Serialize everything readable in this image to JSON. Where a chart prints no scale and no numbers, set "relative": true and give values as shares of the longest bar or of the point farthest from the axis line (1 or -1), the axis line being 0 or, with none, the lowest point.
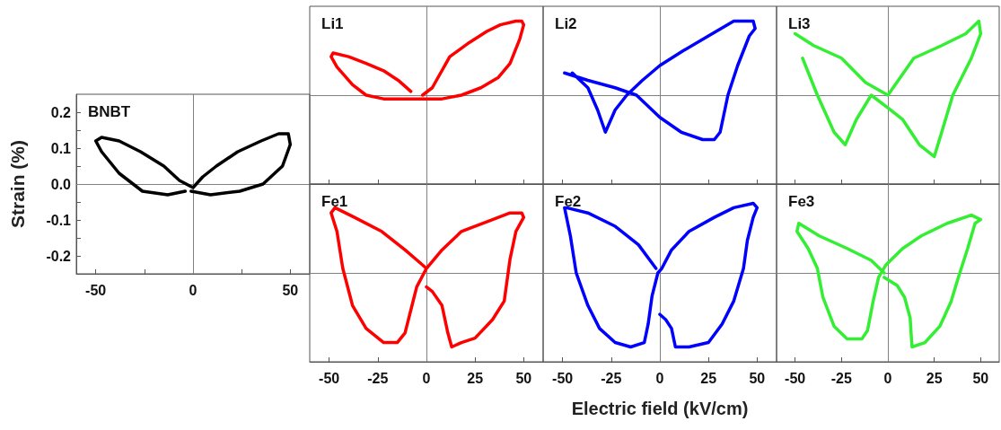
{
  "chart_data": [
    {
      "type": "line",
      "title": "BNBT",
      "ylabel": "Strain (%)",
      "x": [
        -1,
        9,
        24,
        36,
        46,
        50,
        49,
        44,
        35,
        23,
        12,
        5,
        0,
        -7,
        -15,
        -27,
        -38,
        -47,
        -50,
        -47,
        -38,
        -26,
        -13,
        -4
      ],
      "series": [
        {
          "color": "#000000",
          "values": [
            -0.02,
            -0.03,
            -0.02,
            0,
            0.05,
            0.11,
            0.14,
            0.14,
            0.12,
            0.09,
            0.05,
            0.02,
            -0.01,
            0.01,
            0.05,
            0.09,
            0.12,
            0.13,
            0.12,
            0.09,
            0.03,
            -0.02,
            -0.03,
            -0.02
          ]
        }
      ],
      "xlim": [
        -60,
        60
      ],
      "ylim": [
        -0.25,
        0.25
      ],
      "xticks": [
        -50,
        {
          "value": -25,
          "label": null
        },
        0,
        {
          "value": 25,
          "label": null
        },
        50
      ],
      "yticks": [
        -0.2,
        {
          "value": -0.15,
          "label": null
        },
        -0.1,
        {
          "value": -0.05,
          "label": null
        },
        {
          "value": 0,
          "label": "0.0"
        },
        {
          "value": 0.05,
          "label": null
        },
        0.1,
        {
          "value": 0.15,
          "label": null
        },
        0.2
      ],
      "ref_lines": [
        {
          "axis": "x",
          "value": 0,
          "color": "#808080"
        },
        {
          "axis": "y",
          "value": 0,
          "color": "#808080"
        }
      ]
    },
    {
      "type": "line",
      "title": "Li1",
      "relative": true,
      "x": [
        -2,
        3,
        12,
        22,
        31,
        38,
        46,
        49,
        50,
        48,
        43,
        37,
        28,
        18,
        8,
        0,
        -11,
        -22,
        -31,
        -38,
        -46,
        -49,
        -48,
        -40,
        -31,
        -22,
        -14,
        -8
      ],
      "series": [
        {
          "color": "#ff0000",
          "values": [
            0,
            0.1,
            0.52,
            0.71,
            0.86,
            0.95,
            1,
            1,
            0.95,
            0.76,
            0.43,
            0.24,
            0.1,
            0,
            -0.05,
            -0.05,
            -0.05,
            -0.05,
            0,
            0.14,
            0.38,
            0.52,
            0.57,
            0.52,
            0.43,
            0.33,
            0.19,
            0.05
          ]
        }
      ],
      "xlim": [
        -60,
        60
      ],
      "tick_labels": false,
      "xticks": [
        -50,
        -25,
        0,
        25,
        50
      ],
      "ref_lines": [
        {
          "axis": "x",
          "value": 0,
          "color": "#808080"
        }
      ]
    },
    {
      "type": "line",
      "title": "Li2",
      "relative": true,
      "x": [
        -49,
        -37,
        -23,
        -12,
        0,
        11,
        22,
        28,
        31,
        35,
        40,
        46,
        49,
        48,
        38,
        25,
        12,
        0,
        -9,
        -17,
        -23,
        -28,
        -32,
        -37,
        -45
      ],
      "series": [
        {
          "color": "#0000ff",
          "values": [
            0.3,
            0.2,
            0.1,
            0,
            -0.3,
            -0.5,
            -0.6,
            -0.6,
            -0.5,
            0,
            0.4,
            0.8,
            0.9,
            1,
            1,
            0.8,
            0.6,
            0.4,
            0.2,
            0,
            -0.2,
            -0.5,
            -0.2,
            0.1,
            0.3
          ]
        }
      ],
      "xlim": [
        -60,
        60
      ],
      "tick_labels": false,
      "xticks": [
        -50,
        -25,
        0,
        25,
        50
      ],
      "ref_lines": [
        {
          "axis": "x",
          "value": 0,
          "color": "#808080"
        }
      ]
    },
    {
      "type": "line",
      "title": "Li3",
      "relative": true,
      "x": [
        -50,
        -40,
        -25,
        -12,
        0,
        14,
        29,
        42,
        49,
        50,
        45,
        35,
        29,
        25,
        17,
        8,
        0,
        -9,
        -17,
        -23,
        -29,
        -38,
        -46
      ],
      "series": [
        {
          "color": "#33ee33",
          "values": [
            0.83,
            0.67,
            0.5,
            0.17,
            0,
            0.5,
            0.67,
            0.83,
            1,
            0.83,
            0.5,
            0,
            -0.5,
            -0.83,
            -0.67,
            -0.33,
            -0.17,
            0,
            -0.33,
            -0.67,
            -0.5,
            0,
            0.5
          ]
        }
      ],
      "xlim": [
        -60,
        60
      ],
      "tick_labels": false,
      "xticks": [
        -50,
        -25,
        0,
        25,
        50
      ],
      "ref_lines": [
        {
          "axis": "x",
          "value": 0,
          "color": "#808080"
        }
      ]
    },
    {
      "type": "line",
      "title": "Fe1",
      "relative": true,
      "x": [
        0,
        3,
        8,
        11,
        13,
        18,
        25,
        34,
        40,
        43,
        46,
        50,
        49,
        43,
        31,
        18,
        8,
        0,
        -5,
        -8,
        -11,
        -15,
        -22,
        -31,
        -38,
        -43,
        -46,
        -49,
        -47,
        -37,
        -23,
        -11,
        -3,
        0
      ],
      "series": [
        {
          "color": "#ff0000",
          "values": [
            -0.19,
            -0.25,
            -0.44,
            -0.81,
            -1,
            -0.94,
            -0.88,
            -0.63,
            -0.38,
            0.19,
            0.56,
            0.75,
            0.81,
            0.81,
            0.69,
            0.56,
            0.31,
            0.06,
            -0.19,
            -0.5,
            -0.81,
            -0.94,
            -0.94,
            -0.75,
            -0.44,
            0.06,
            0.56,
            0.81,
            0.88,
            0.75,
            0.56,
            0.31,
            0.13,
            0.06
          ]
        }
      ],
      "xlim": [
        -60,
        60
      ],
      "tick_labels": "x",
      "xticks": [
        -50,
        -25,
        0,
        25,
        50
      ],
      "ref_lines": [
        {
          "axis": "x",
          "value": 0,
          "color": "#808080"
        }
      ]
    },
    {
      "type": "line",
      "title": "Fe2",
      "relative": true,
      "xlabel": "Electric field (kV/cm)",
      "x": [
        0,
        3,
        6,
        8,
        15,
        25,
        32,
        38,
        43,
        45,
        48,
        50,
        48,
        38,
        28,
        15,
        6,
        1,
        -1,
        -4,
        -6,
        -8,
        -15,
        -23,
        -31,
        -37,
        -43,
        -46,
        -49,
        -48,
        -37,
        -23,
        -11,
        -2
      ],
      "series": [
        {
          "color": "#0000ff",
          "values": [
            -0.56,
            -0.63,
            -0.75,
            -1,
            -1,
            -0.94,
            -0.69,
            -0.38,
            0.06,
            0.44,
            0.75,
            0.88,
            0.94,
            0.88,
            0.75,
            0.56,
            0.31,
            0.06,
            0,
            -0.31,
            -0.69,
            -0.94,
            -1,
            -0.94,
            -0.75,
            -0.44,
            0,
            0.5,
            0.88,
            0.88,
            0.81,
            0.63,
            0.38,
            0.06
          ]
        }
      ],
      "xlim": [
        -60,
        60
      ],
      "tick_labels": "x",
      "xticks": [
        -50,
        -25,
        0,
        25,
        50
      ],
      "ref_lines": [
        {
          "axis": "x",
          "value": 0,
          "color": "#808080"
        }
      ]
    },
    {
      "type": "line",
      "title": "Fe3",
      "relative": true,
      "x": [
        -2,
        5,
        9,
        12,
        13,
        20,
        28,
        34,
        38,
        43,
        47,
        50,
        45,
        32,
        18,
        8,
        -1,
        -5,
        -8,
        -11,
        -14,
        -22,
        -29,
        -35,
        -38,
        -43,
        -49,
        -48,
        -37,
        -22,
        -9,
        -2
      ],
      "series": [
        {
          "color": "#33ee33",
          "values": [
            -0.06,
            -0.17,
            -0.33,
            -0.61,
            -1,
            -0.94,
            -0.72,
            -0.39,
            -0.06,
            0.33,
            0.67,
            0.72,
            0.78,
            0.67,
            0.5,
            0.33,
            0.11,
            -0.06,
            -0.39,
            -0.78,
            -0.89,
            -0.89,
            -0.72,
            -0.33,
            0.06,
            0.33,
            0.56,
            0.67,
            0.5,
            0.33,
            0.17,
            0
          ]
        }
      ],
      "xlim": [
        -60,
        60
      ],
      "tick_labels": "x",
      "xticks": [
        -50,
        -25,
        0,
        25,
        50
      ],
      "ref_lines": [
        {
          "axis": "x",
          "value": 0,
          "color": "#808080"
        }
      ]
    }
  ]
}
